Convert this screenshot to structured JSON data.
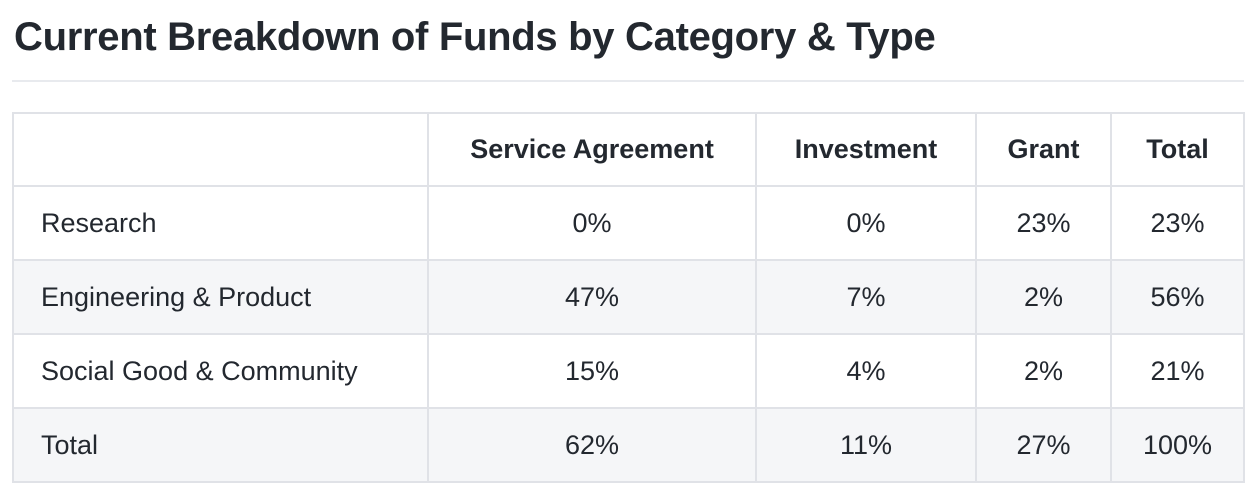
{
  "page": {
    "title": "Current Breakdown of Funds by Category & Type"
  },
  "table": {
    "columns": [
      "",
      "Service Agreement",
      "Investment",
      "Grant",
      "Total"
    ],
    "rows": [
      {
        "label": "Research",
        "values": [
          "0%",
          "0%",
          "23%",
          "23%"
        ]
      },
      {
        "label": "Engineering & Product",
        "values": [
          "47%",
          "7%",
          "2%",
          "56%"
        ]
      },
      {
        "label": "Social Good & Community",
        "values": [
          "15%",
          "4%",
          "2%",
          "21%"
        ]
      },
      {
        "label": "Total",
        "values": [
          "62%",
          "11%",
          "27%",
          "100%"
        ]
      }
    ]
  },
  "colors": {
    "text": "#23282f",
    "background": "#ffffff",
    "row_stripe": "#f5f6f8",
    "table_border": "#e0e2e7",
    "title_rule": "#e8eaee"
  }
}
